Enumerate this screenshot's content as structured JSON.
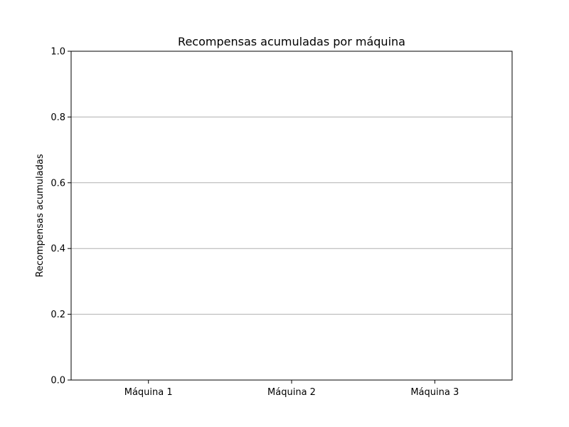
{
  "chart_data": {
    "type": "bar",
    "title": "Recompensas acumuladas por máquina",
    "xlabel": "",
    "ylabel": "Recompensas acumuladas",
    "categories": [
      "Máquina 1",
      "Máquina 2",
      "Máquina 3"
    ],
    "values": [
      0,
      0,
      0
    ],
    "ylim": [
      0,
      1
    ],
    "yticks": [
      "0.0",
      "0.2",
      "0.4",
      "0.6",
      "0.8",
      "1.0"
    ],
    "grid": "y",
    "legend": "none",
    "colors": {
      "grid": "#b0b0b0",
      "axis": "#000000",
      "bar": "#1f77b4"
    }
  }
}
